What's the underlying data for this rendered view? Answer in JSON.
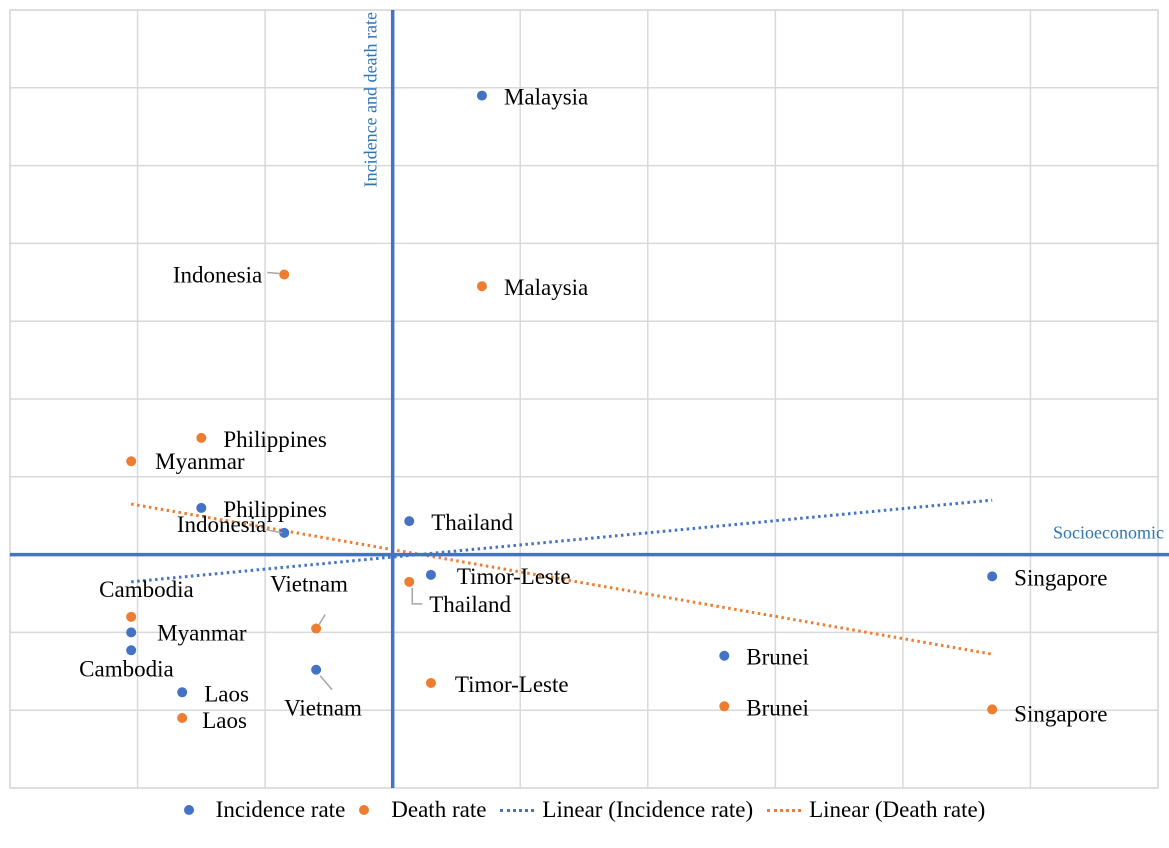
{
  "colors": {
    "incidence": "#4472c4",
    "death": "#ed7d31",
    "axis": "#4472c4",
    "axis_title": "#2e75b6",
    "grid": "#d9d9d9"
  },
  "chart_data": {
    "type": "scatter",
    "title": "",
    "xlabel": "Socioeconomic",
    "ylabel": "Incidence and death rate",
    "xlim": [
      -3,
      6
    ],
    "ylim": [
      -3,
      7
    ],
    "grid": true,
    "legend_position": "bottom",
    "series": [
      {
        "name": "Incidence rate",
        "color": "#4472c4",
        "points": [
          {
            "label": "Malaysia",
            "x": 0.7,
            "y": 5.9
          },
          {
            "label": "Philippines",
            "x": -1.5,
            "y": 0.6
          },
          {
            "label": "Indonesia",
            "x": -0.85,
            "y": 0.28
          },
          {
            "label": "Thailand",
            "x": 0.13,
            "y": 0.43
          },
          {
            "label": "Timor-Leste",
            "x": 0.3,
            "y": -0.26
          },
          {
            "label": "Singapore",
            "x": 4.7,
            "y": -0.28
          },
          {
            "label": "Myanmar",
            "x": -2.05,
            "y": -1.0
          },
          {
            "label": "Cambodia",
            "x": -2.05,
            "y": -1.23
          },
          {
            "label": "Laos",
            "x": -1.65,
            "y": -1.77
          },
          {
            "label": "Vietnam",
            "x": -0.6,
            "y": -1.48
          },
          {
            "label": "Brunei",
            "x": 2.6,
            "y": -1.3
          }
        ]
      },
      {
        "name": "Death rate",
        "color": "#ed7d31",
        "points": [
          {
            "label": "Indonesia",
            "x": -0.85,
            "y": 3.6
          },
          {
            "label": "Malaysia",
            "x": 0.7,
            "y": 3.45
          },
          {
            "label": "Philippines",
            "x": -1.5,
            "y": 1.5
          },
          {
            "label": "Myanmar",
            "x": -2.05,
            "y": 1.2
          },
          {
            "label": "Thailand",
            "x": 0.13,
            "y": -0.35
          },
          {
            "label": "Cambodia",
            "x": -2.05,
            "y": -0.8
          },
          {
            "label": "Vietnam",
            "x": -0.6,
            "y": -0.95
          },
          {
            "label": "Timor-Leste",
            "x": 0.3,
            "y": -1.65
          },
          {
            "label": "Brunei",
            "x": 2.6,
            "y": -1.95
          },
          {
            "label": "Singapore",
            "x": 4.7,
            "y": -1.99
          },
          {
            "label": "Laos",
            "x": -1.65,
            "y": -2.1
          }
        ]
      }
    ],
    "trendlines": [
      {
        "name": "Linear (Incidence rate)",
        "series": "Incidence rate",
        "color": "#4472c4",
        "x": [
          -2.05,
          4.7
        ],
        "y": [
          -0.35,
          0.7
        ]
      },
      {
        "name": "Linear (Death rate)",
        "series": "Death rate",
        "color": "#ed7d31",
        "x": [
          -2.05,
          4.7
        ],
        "y": [
          0.65,
          -1.28
        ]
      }
    ],
    "legend": [
      "Incidence rate",
      "Death rate",
      "Linear (Incidence rate)",
      "Linear (Death rate)"
    ]
  }
}
